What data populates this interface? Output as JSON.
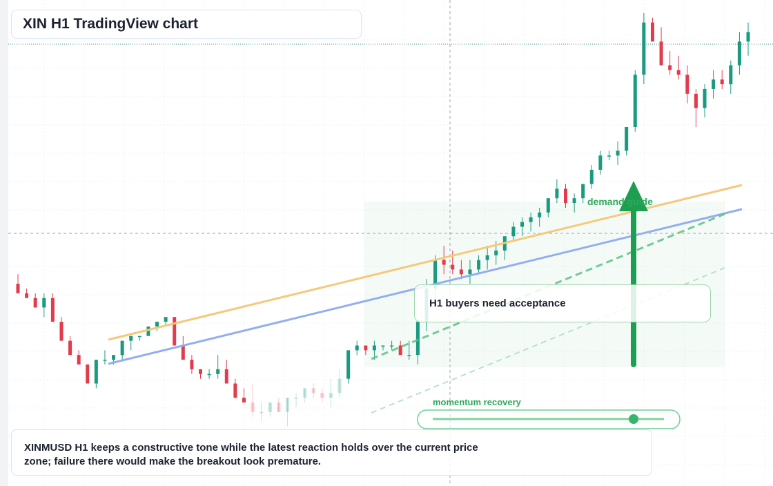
{
  "title": "XIN H1 TradingView chart",
  "callout": "H1 buyers need acceptance",
  "caption": "XINMUSD H1 keeps a constructive tone while the latest reaction holds over the current price zone; failure there would make the breakout look premature.",
  "annotations": {
    "demand_label": "demand guide",
    "momentum_label": "momentum recovery"
  },
  "colors": {
    "up": "#1a9a7f",
    "down": "#e23b4c",
    "trend_orange": "#f6c879",
    "trend_blue": "#93aef0",
    "signal_green": "#1d9f52"
  },
  "chart_data": {
    "type": "candlestick",
    "ylim": [
      0,
      100
    ],
    "candles": [
      {
        "o": 42,
        "h": 44,
        "l": 40,
        "c": 40
      },
      {
        "o": 40,
        "h": 41,
        "l": 39,
        "c": 39
      },
      {
        "o": 39,
        "h": 40,
        "l": 37,
        "c": 37
      },
      {
        "o": 37,
        "h": 40,
        "l": 35,
        "c": 39
      },
      {
        "o": 39,
        "h": 40,
        "l": 34,
        "c": 34
      },
      {
        "o": 34,
        "h": 35,
        "l": 30,
        "c": 30
      },
      {
        "o": 30,
        "h": 31,
        "l": 27,
        "c": 27
      },
      {
        "o": 27,
        "h": 28,
        "l": 25,
        "c": 25
      },
      {
        "o": 25,
        "h": 25,
        "l": 21,
        "c": 21
      },
      {
        "o": 21,
        "h": 26,
        "l": 20,
        "c": 26
      },
      {
        "o": 26,
        "h": 28,
        "l": 25,
        "c": 26
      },
      {
        "o": 26,
        "h": 27,
        "l": 25,
        "c": 27
      },
      {
        "o": 27,
        "h": 30,
        "l": 26,
        "c": 30
      },
      {
        "o": 30,
        "h": 31,
        "l": 28,
        "c": 31
      },
      {
        "o": 31,
        "h": 31,
        "l": 30,
        "c": 31
      },
      {
        "o": 31,
        "h": 33,
        "l": 31,
        "c": 33
      },
      {
        "o": 33,
        "h": 34,
        "l": 32,
        "c": 34
      },
      {
        "o": 34,
        "h": 35,
        "l": 33,
        "c": 35
      },
      {
        "o": 35,
        "h": 35,
        "l": 29,
        "c": 29
      },
      {
        "o": 29,
        "h": 31,
        "l": 26,
        "c": 26
      },
      {
        "o": 26,
        "h": 27,
        "l": 23,
        "c": 24
      },
      {
        "o": 24,
        "h": 24,
        "l": 22,
        "c": 23
      },
      {
        "o": 23,
        "h": 24,
        "l": 22,
        "c": 23
      },
      {
        "o": 23,
        "h": 27,
        "l": 22,
        "c": 24
      },
      {
        "o": 24,
        "h": 26,
        "l": 21,
        "c": 21
      },
      {
        "o": 21,
        "h": 22,
        "l": 18,
        "c": 18
      },
      {
        "o": 18,
        "h": 20,
        "l": 17,
        "c": 17
      },
      {
        "o": 17,
        "h": 21,
        "l": 14,
        "c": 15
      },
      {
        "o": 15,
        "h": 17,
        "l": 13,
        "c": 15
      },
      {
        "o": 15,
        "h": 17,
        "l": 14,
        "c": 17
      },
      {
        "o": 17,
        "h": 18,
        "l": 15,
        "c": 15
      },
      {
        "o": 15,
        "h": 18,
        "l": 12,
        "c": 18
      },
      {
        "o": 18,
        "h": 19,
        "l": 16,
        "c": 18
      },
      {
        "o": 18,
        "h": 20,
        "l": 17,
        "c": 20
      },
      {
        "o": 20,
        "h": 21,
        "l": 18,
        "c": 19
      },
      {
        "o": 19,
        "h": 20,
        "l": 17,
        "c": 18
      },
      {
        "o": 18,
        "h": 22,
        "l": 16,
        "c": 19
      },
      {
        "o": 19,
        "h": 24,
        "l": 18,
        "c": 22
      },
      {
        "o": 22,
        "h": 28,
        "l": 21,
        "c": 28
      },
      {
        "o": 28,
        "h": 30,
        "l": 27,
        "c": 29
      },
      {
        "o": 29,
        "h": 29,
        "l": 27,
        "c": 28
      },
      {
        "o": 28,
        "h": 30,
        "l": 26,
        "c": 29
      },
      {
        "o": 29,
        "h": 29,
        "l": 28,
        "c": 29
      },
      {
        "o": 29,
        "h": 30,
        "l": 28,
        "c": 29
      },
      {
        "o": 29,
        "h": 30,
        "l": 27,
        "c": 27
      },
      {
        "o": 27,
        "h": 30,
        "l": 26,
        "c": 27
      },
      {
        "o": 27,
        "h": 34,
        "l": 25,
        "c": 34
      },
      {
        "o": 34,
        "h": 43,
        "l": 32,
        "c": 41
      },
      {
        "o": 41,
        "h": 48,
        "l": 39,
        "c": 47
      },
      {
        "o": 47,
        "h": 50,
        "l": 44,
        "c": 46
      },
      {
        "o": 46,
        "h": 49,
        "l": 44,
        "c": 45
      },
      {
        "o": 45,
        "h": 47,
        "l": 43,
        "c": 44
      },
      {
        "o": 44,
        "h": 47,
        "l": 42,
        "c": 45
      },
      {
        "o": 45,
        "h": 48,
        "l": 44,
        "c": 47
      },
      {
        "o": 47,
        "h": 50,
        "l": 45,
        "c": 48
      },
      {
        "o": 48,
        "h": 51,
        "l": 46,
        "c": 49
      },
      {
        "o": 49,
        "h": 52,
        "l": 47,
        "c": 52
      },
      {
        "o": 52,
        "h": 55,
        "l": 51,
        "c": 54
      },
      {
        "o": 54,
        "h": 56,
        "l": 52,
        "c": 55
      },
      {
        "o": 55,
        "h": 57,
        "l": 53,
        "c": 56
      },
      {
        "o": 56,
        "h": 58,
        "l": 54,
        "c": 57
      },
      {
        "o": 57,
        "h": 60,
        "l": 56,
        "c": 60
      },
      {
        "o": 60,
        "h": 64,
        "l": 59,
        "c": 62
      },
      {
        "o": 62,
        "h": 63,
        "l": 58,
        "c": 59
      },
      {
        "o": 59,
        "h": 61,
        "l": 57,
        "c": 60
      },
      {
        "o": 60,
        "h": 63,
        "l": 59,
        "c": 63
      },
      {
        "o": 63,
        "h": 67,
        "l": 62,
        "c": 66
      },
      {
        "o": 66,
        "h": 70,
        "l": 65,
        "c": 69
      },
      {
        "o": 69,
        "h": 70,
        "l": 68,
        "c": 69
      },
      {
        "o": 69,
        "h": 72,
        "l": 67,
        "c": 70
      },
      {
        "o": 70,
        "h": 75,
        "l": 69,
        "c": 75
      },
      {
        "o": 75,
        "h": 87,
        "l": 74,
        "c": 86
      },
      {
        "o": 86,
        "h": 99,
        "l": 84,
        "c": 97
      },
      {
        "o": 97,
        "h": 98,
        "l": 93,
        "c": 93
      },
      {
        "o": 93,
        "h": 96,
        "l": 88,
        "c": 88
      },
      {
        "o": 88,
        "h": 91,
        "l": 86,
        "c": 87
      },
      {
        "o": 87,
        "h": 90,
        "l": 85,
        "c": 86
      },
      {
        "o": 86,
        "h": 88,
        "l": 80,
        "c": 82
      },
      {
        "o": 82,
        "h": 83,
        "l": 75,
        "c": 79
      },
      {
        "o": 79,
        "h": 84,
        "l": 77,
        "c": 83
      },
      {
        "o": 83,
        "h": 87,
        "l": 81,
        "c": 85
      },
      {
        "o": 85,
        "h": 87,
        "l": 83,
        "c": 84
      },
      {
        "o": 84,
        "h": 89,
        "l": 82,
        "c": 88
      },
      {
        "o": 88,
        "h": 95,
        "l": 86,
        "c": 93
      },
      {
        "o": 93,
        "h": 97,
        "l": 90,
        "c": 95
      }
    ]
  }
}
